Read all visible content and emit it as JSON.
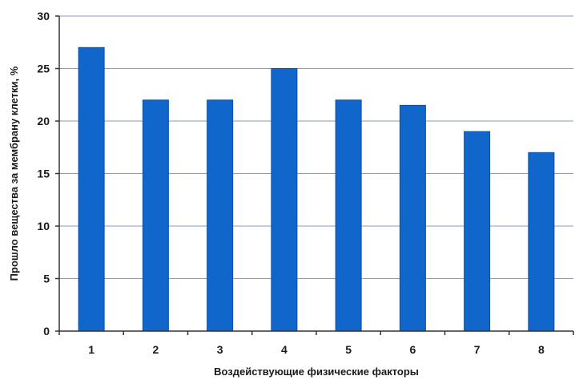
{
  "chart_data": {
    "type": "bar",
    "title": "",
    "xlabel": "Воздействующие физические факторы",
    "ylabel": "Прошло вещества за мембрану клетки, %",
    "categories": [
      "1",
      "2",
      "3",
      "4",
      "5",
      "6",
      "7",
      "8"
    ],
    "values": [
      27,
      22,
      22,
      25,
      22,
      21.5,
      19,
      17
    ],
    "ylim": [
      0,
      30
    ],
    "yticks": [
      0,
      5,
      10,
      15,
      20,
      25,
      30
    ],
    "grid": true,
    "legend": "none",
    "colors": {
      "bar_fill": "#1166CC",
      "bar_edge": "#0A4FA8",
      "gridline": "#8A9BBF",
      "axis": "#333333"
    }
  }
}
